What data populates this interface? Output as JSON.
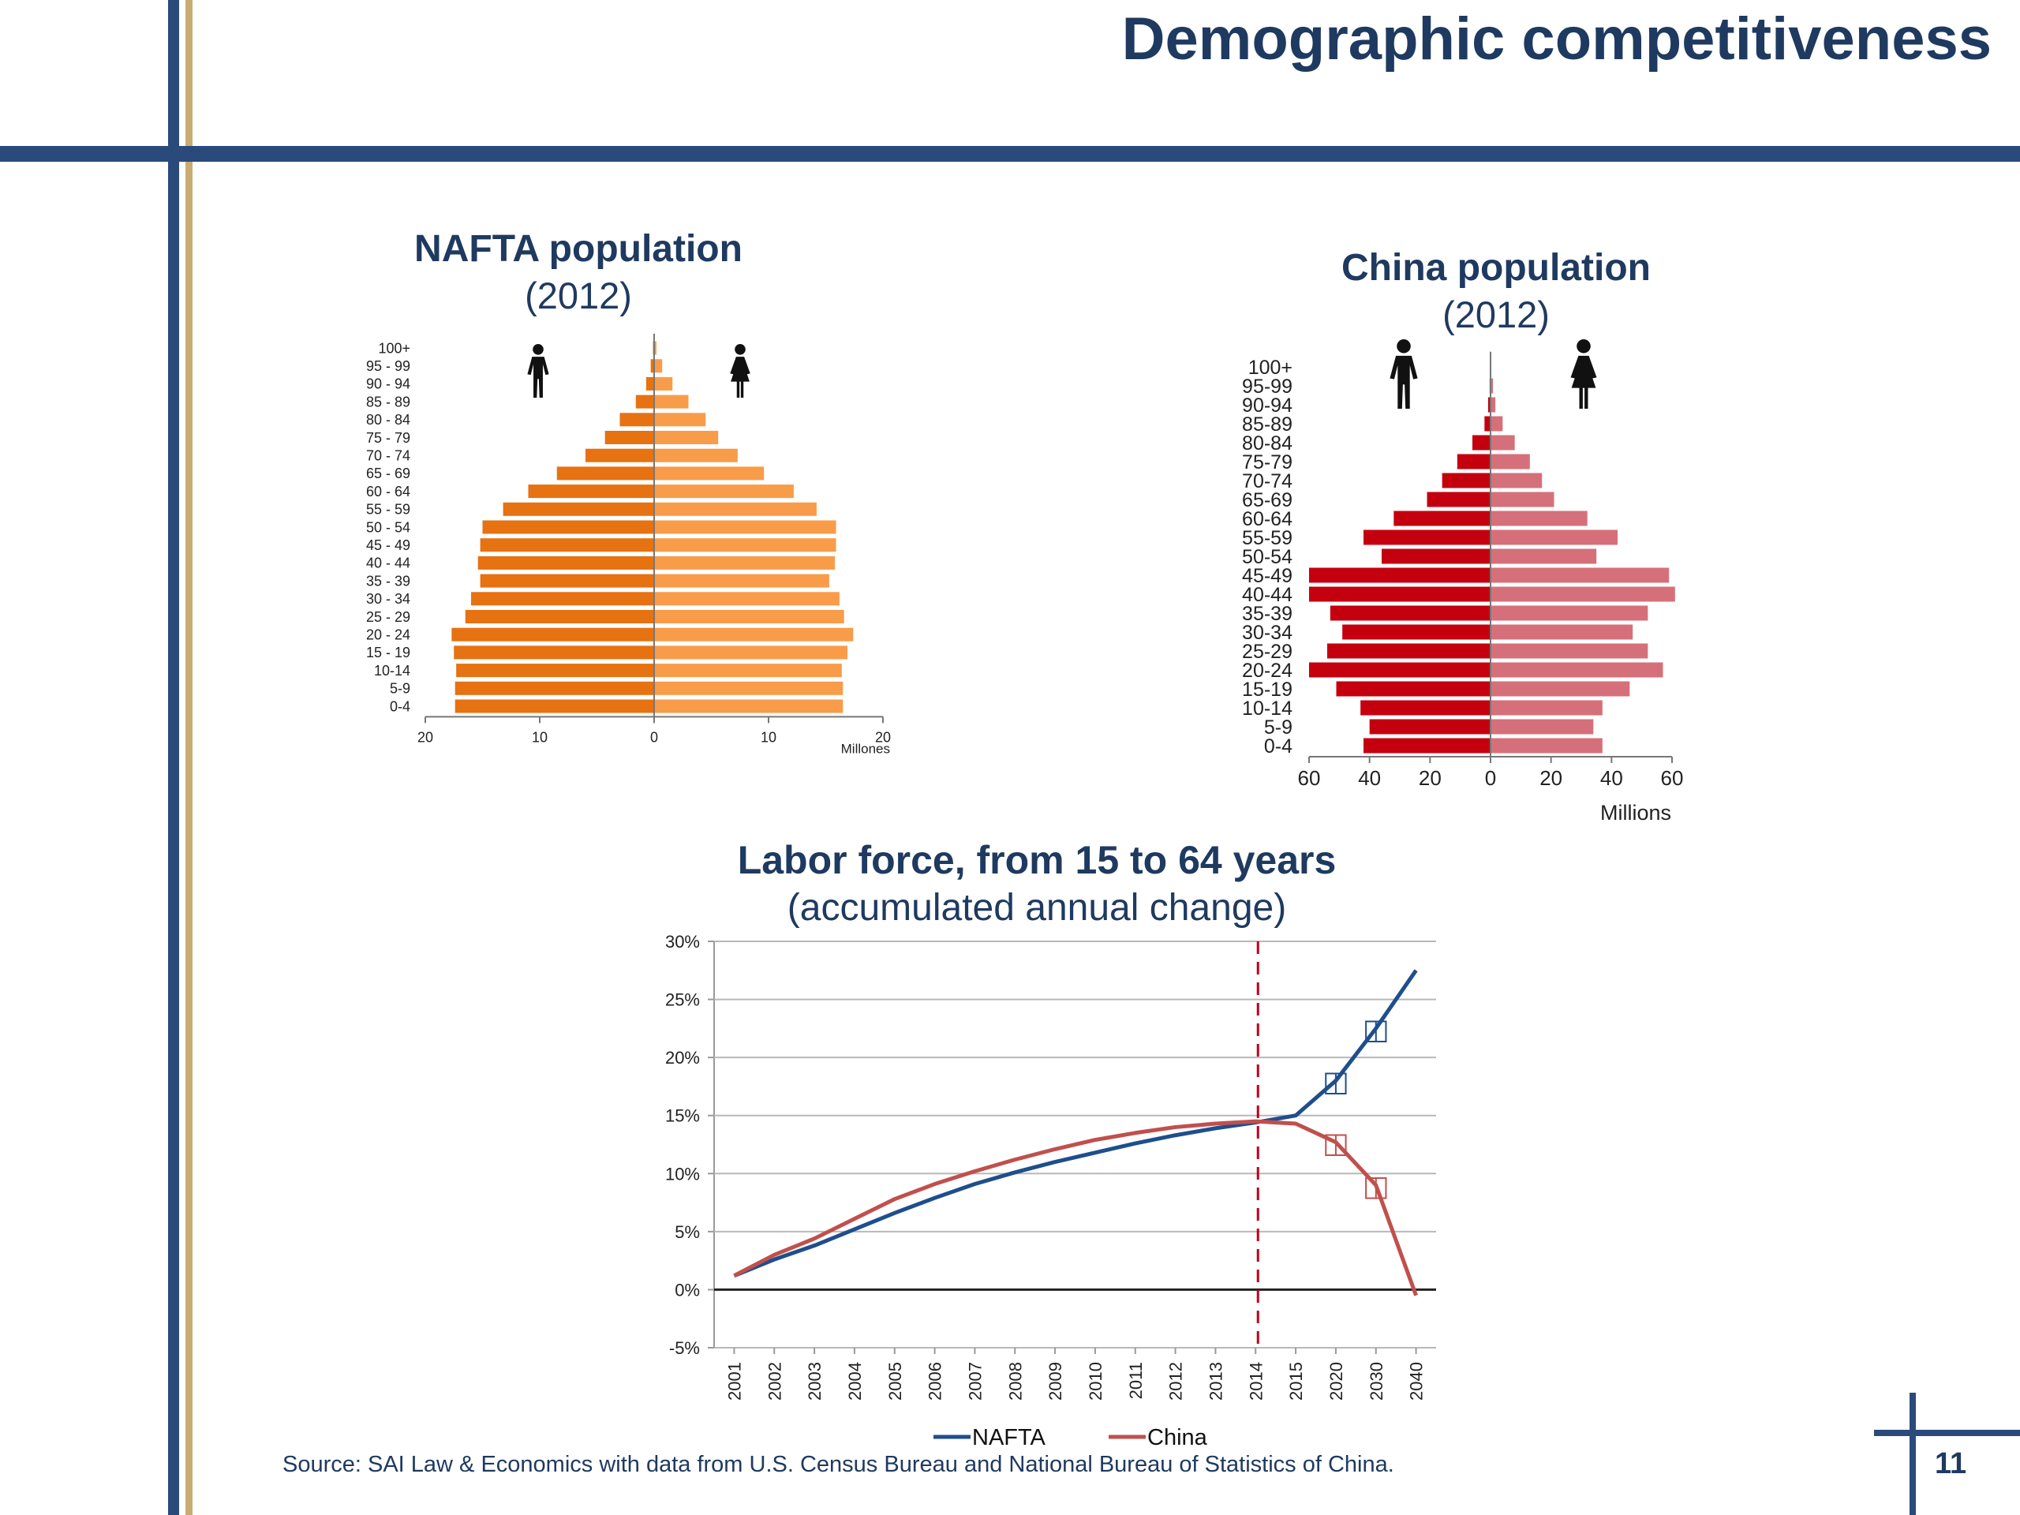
{
  "slide": {
    "title": "Demographic competitiveness",
    "source": "Source: SAI Law & Economics with data from U.S. Census Bureau and National Bureau of Statistics of China.",
    "page_number": "11"
  },
  "colors": {
    "brand_navy": "#2b4a7c",
    "brand_gold": "#c9ac72",
    "title_text": "#1f3a60",
    "nafta_male": "#e67212",
    "nafta_female": "#f89c4a",
    "china_male": "#c4000f",
    "china_female": "#d5707a",
    "line_nafta": "#1f4e8c",
    "line_china": "#c0504d",
    "marker_line": "#c0001a"
  },
  "chart_data": [
    {
      "id": "nafta",
      "type": "bar",
      "orientation": "horizontal-pyramid",
      "title": "NAFTA population",
      "subtitle": "(2012)",
      "categories": [
        "100+",
        "95 - 99",
        "90 - 94",
        "85 - 89",
        "80 - 84",
        "75 - 79",
        "70 - 74",
        "65 - 69",
        "60 - 64",
        "55 - 59",
        "50 - 54",
        "45 - 49",
        "40 - 44",
        "35 - 39",
        "30 - 34",
        "25 - 29",
        "20 - 24",
        "15 - 19",
        "10-14",
        "5-9",
        "0-4"
      ],
      "series": [
        {
          "name": "Male",
          "icon": "male-figure-icon",
          "values": [
            0.1,
            0.3,
            0.7,
            1.6,
            3.0,
            4.3,
            6.0,
            8.5,
            11.0,
            13.2,
            15.0,
            15.2,
            15.4,
            15.2,
            16.0,
            16.5,
            17.7,
            17.5,
            17.3,
            17.4,
            17.4
          ]
        },
        {
          "name": "Female",
          "icon": "female-figure-icon",
          "values": [
            0.2,
            0.7,
            1.6,
            3.0,
            4.5,
            5.6,
            7.3,
            9.6,
            12.2,
            14.2,
            15.9,
            15.9,
            15.8,
            15.3,
            16.2,
            16.6,
            17.4,
            16.9,
            16.4,
            16.5,
            16.5
          ]
        }
      ],
      "xlim": [
        -20,
        20
      ],
      "xticks": [
        -20,
        -10,
        0,
        10,
        20
      ],
      "xtick_labels": [
        "20",
        "10",
        "0",
        "10",
        "20"
      ],
      "xlabel": "Millones"
    },
    {
      "id": "china",
      "type": "bar",
      "orientation": "horizontal-pyramid",
      "title": "China population",
      "subtitle": "(2012)",
      "categories": [
        "100+",
        "95-99",
        "90-94",
        "85-89",
        "80-84",
        "75-79",
        "70-74",
        "65-69",
        "60-64",
        "55-59",
        "50-54",
        "45-49",
        "40-44",
        "35-39",
        "30-34",
        "25-29",
        "20-24",
        "15-19",
        "10-14",
        "5-9",
        "0-4"
      ],
      "series": [
        {
          "name": "Male",
          "icon": "male-figure-icon",
          "values": [
            0.1,
            0.3,
            0.8,
            2,
            6,
            11,
            16,
            21,
            32,
            42,
            36,
            60,
            60,
            53,
            49,
            54,
            60,
            51,
            43,
            40,
            42
          ]
        },
        {
          "name": "Female",
          "icon": "female-figure-icon",
          "values": [
            0.2,
            0.8,
            1.6,
            4,
            8,
            13,
            17,
            21,
            32,
            42,
            35,
            59,
            61,
            52,
            47,
            52,
            57,
            46,
            37,
            34,
            37
          ]
        }
      ],
      "xlim": [
        -60,
        60
      ],
      "xticks": [
        -60,
        -40,
        -20,
        0,
        20,
        40,
        60
      ],
      "xtick_labels": [
        "60",
        "40",
        "20",
        "0",
        "20",
        "40",
        "60"
      ],
      "xlabel": "Millions"
    },
    {
      "id": "labor",
      "type": "line",
      "title": "Labor force, from 15 to 64 years",
      "subtitle": "(accumulated annual change)",
      "categories": [
        "2001",
        "2002",
        "2003",
        "2004",
        "2005",
        "2006",
        "2007",
        "2008",
        "2009",
        "2010",
        "2011",
        "2012",
        "2013",
        "2014",
        "2015",
        "2020",
        "2030",
        "2040"
      ],
      "series": [
        {
          "name": "NAFTA",
          "values": [
            1.2,
            2.6,
            3.8,
            5.2,
            6.6,
            7.9,
            9.1,
            10.1,
            11.0,
            11.8,
            12.6,
            13.3,
            13.9,
            14.4,
            15.0,
            18.0,
            22.5,
            27.5
          ]
        },
        {
          "name": "China",
          "values": [
            1.2,
            3.0,
            4.4,
            6.1,
            7.8,
            9.1,
            10.2,
            11.2,
            12.1,
            12.9,
            13.5,
            14.0,
            14.3,
            14.5,
            14.3,
            12.7,
            9.0,
            -0.5
          ]
        }
      ],
      "ylim": [
        -5,
        30
      ],
      "yticks": [
        -5,
        0,
        5,
        10,
        15,
        20,
        25,
        30
      ],
      "ytick_labels": [
        "-5%",
        "0%",
        "5%",
        "10%",
        "15%",
        "20%",
        "25%",
        "30%"
      ],
      "marker_category": "2014",
      "projection_categories": [
        "2020",
        "2030"
      ],
      "projection_glyph": "◫",
      "grid": true,
      "legend_position": "bottom-center"
    }
  ]
}
